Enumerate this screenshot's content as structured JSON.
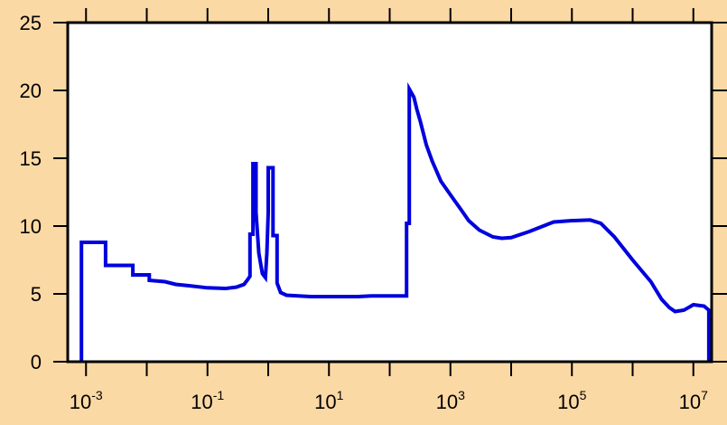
{
  "chart_data": {
    "type": "line",
    "style": "step",
    "title": "",
    "xlabel": "",
    "ylabel": "",
    "xscale": "log",
    "xlim": [
      0.0005,
      20000000
    ],
    "ylim": [
      0,
      25
    ],
    "grid": false,
    "legend": "none",
    "x_ticks": [
      {
        "base": "10",
        "exp": "-3",
        "value": 0.001
      },
      {
        "base": "10",
        "exp": "-1",
        "value": 0.1
      },
      {
        "base": "10",
        "exp": "1",
        "value": 10
      },
      {
        "base": "10",
        "exp": "3",
        "value": 1000
      },
      {
        "base": "10",
        "exp": "5",
        "value": 100000
      },
      {
        "base": "10",
        "exp": "7",
        "value": 10000000
      }
    ],
    "y_ticks": [
      "0",
      "5",
      "10",
      "15",
      "20",
      "25"
    ],
    "colors": {
      "background": "#fbd9a4",
      "plot_area": "#ffffff",
      "line": "#0000dd",
      "frame": "#000000"
    },
    "series": [
      {
        "color": "#0000dd",
        "x": [
          0.00084,
          0.00084,
          0.0021,
          0.0021,
          0.0059,
          0.0059,
          0.011,
          0.011,
          0.02,
          0.03,
          0.05,
          0.1,
          0.2,
          0.3,
          0.4,
          0.45,
          0.5,
          0.5,
          0.56,
          0.56,
          0.63,
          0.63,
          0.7,
          0.8,
          0.9,
          0.95,
          1.0,
          1.0,
          1.2,
          1.2,
          1.4,
          1.4,
          1.6,
          2.0,
          5.0,
          10,
          30,
          50,
          100,
          190,
          190,
          210,
          210,
          250,
          280,
          320,
          400,
          500,
          700,
          1000,
          1500,
          2000,
          3000,
          5000,
          7000,
          10000,
          20000,
          50000,
          100000,
          200000,
          300000,
          500000,
          1000000,
          2000000,
          3000000,
          4000000,
          5000000,
          7000000,
          10000000,
          15000000,
          18000000,
          18000000
        ],
        "y": [
          0,
          8.8,
          8.8,
          7.1,
          7.1,
          6.4,
          6.4,
          6.0,
          5.9,
          5.7,
          5.6,
          5.45,
          5.4,
          5.5,
          5.7,
          6.0,
          6.3,
          9.4,
          9.4,
          14.6,
          14.6,
          11.0,
          8.0,
          6.5,
          6.2,
          8.0,
          11.0,
          14.3,
          14.3,
          9.3,
          9.3,
          5.8,
          5.1,
          4.9,
          4.8,
          4.8,
          4.8,
          4.85,
          4.85,
          4.85,
          10.2,
          10.2,
          20.1,
          19.5,
          18.6,
          17.7,
          16.0,
          14.8,
          13.3,
          12.3,
          11.2,
          10.4,
          9.7,
          9.2,
          9.1,
          9.15,
          9.6,
          10.3,
          10.4,
          10.45,
          10.2,
          9.2,
          7.5,
          5.9,
          4.6,
          4.0,
          3.7,
          3.8,
          4.2,
          4.1,
          3.8,
          0
        ]
      }
    ]
  }
}
